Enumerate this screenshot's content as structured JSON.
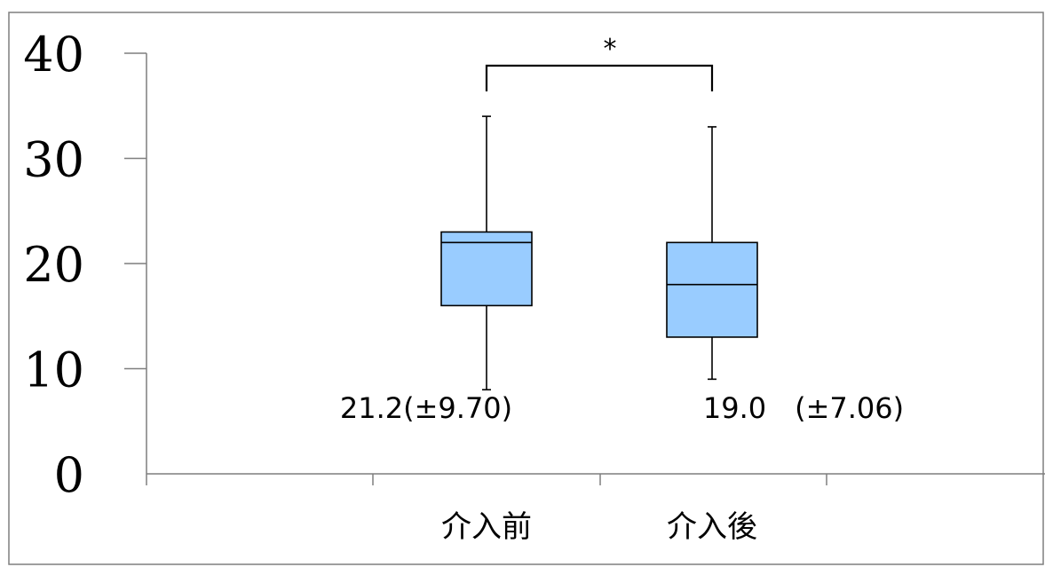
{
  "chart_data": {
    "type": "boxplot",
    "categories": [
      "介入前",
      "介入後"
    ],
    "boxes": [
      {
        "category": "介入前",
        "min": 8,
        "q1": 16,
        "median": 22,
        "q3": 23,
        "max": 34,
        "annotation": "21.2(±9.70)"
      },
      {
        "category": "介入後",
        "min": 9,
        "q1": 13,
        "median": 18,
        "q3": 22,
        "max": 33,
        "annotation": "19.0　(±7.06)"
      }
    ],
    "yticks": [
      "0",
      "10",
      "20",
      "30",
      "40"
    ],
    "ylim": [
      0,
      40
    ],
    "significance": {
      "label": "*",
      "between": [
        "介入前",
        "介入後"
      ]
    },
    "box_color": "#99ccff",
    "grid": false,
    "title": "",
    "xlabel": "",
    "ylabel": ""
  }
}
